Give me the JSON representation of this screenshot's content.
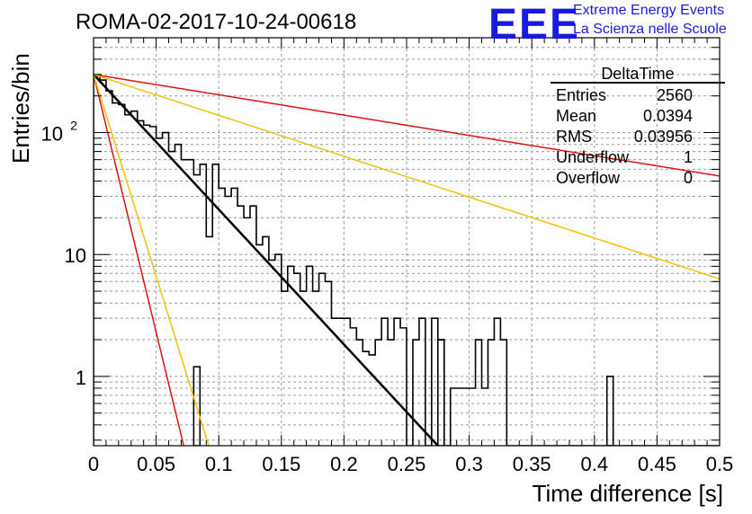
{
  "title": "ROMA-02-2017-10-24-00618",
  "logo": {
    "mark": "EEE",
    "line1": "Extreme Energy Events",
    "line2": "La Scienza nelle Scuole",
    "color": "#1a1adf"
  },
  "stats": {
    "title": "DeltaTime",
    "rows": [
      {
        "label": "Entries",
        "value": "2560"
      },
      {
        "label": "Mean",
        "value": "0.0394"
      },
      {
        "label": "RMS",
        "value": "0.03956"
      },
      {
        "label": "Underflow",
        "value": "1"
      },
      {
        "label": "Overflow",
        "value": "0"
      }
    ]
  },
  "chart_data": {
    "type": "line",
    "title": "ROMA-02-2017-10-24-00618",
    "xlabel": "Time difference [s]",
    "ylabel": "Entries/bin",
    "xlim": [
      0,
      0.5
    ],
    "ylim": [
      0.27,
      600
    ],
    "yscale": "log",
    "grid": true,
    "x_ticks": [
      "0",
      "0.05",
      "0.1",
      "0.15",
      "0.2",
      "0.25",
      "0.3",
      "0.35",
      "0.4",
      "0.45",
      "0.5"
    ],
    "x_tick_values": [
      0,
      0.05,
      0.1,
      0.15,
      0.2,
      0.25,
      0.3,
      0.35,
      0.4,
      0.45,
      0.5
    ],
    "y_ticks": [
      "1",
      "10",
      "10²"
    ],
    "y_tick_values": [
      1,
      10,
      100
    ],
    "histogram": {
      "bin_width": 0.005,
      "color": "#000000",
      "values": [
        290,
        270,
        220,
        175,
        170,
        140,
        150,
        125,
        115,
        112,
        90,
        100,
        70,
        80,
        60,
        60,
        45,
        55,
        14,
        55,
        35,
        30,
        35,
        25,
        20,
        25,
        12,
        14,
        9,
        10,
        5,
        8,
        7,
        5,
        8,
        5,
        7,
        6,
        3,
        3,
        3,
        2.5,
        2,
        1.6,
        1.5,
        2,
        3,
        2,
        3,
        2.5,
        0.2,
        2,
        3,
        0.2,
        3,
        2,
        0.2,
        0.8,
        0.8,
        0.8,
        0.8,
        2,
        0.8,
        2,
        3,
        2,
        0.2,
        0.2,
        0.2,
        0.2,
        0.2,
        0.2,
        0.2,
        0.2,
        0.2,
        0.2,
        0.2,
        0.2,
        0.2,
        0.2,
        0.2,
        0.2,
        0.2,
        0.2,
        0.2,
        0.2,
        0.2,
        0.2,
        0.2,
        0.2,
        0.2,
        0.2,
        0.2,
        0.2,
        0.2,
        0.2,
        0.2,
        0.2,
        0.2,
        0.2
      ],
      "extra": [
        {
          "x": 0.08,
          "w": 0.005,
          "y": 1.2
        },
        {
          "x": 0.275,
          "w": 0.005,
          "y": 2
        },
        {
          "x": 0.28,
          "w": 0.005,
          "y": 0.2
        },
        {
          "x": 0.41,
          "w": 0.005,
          "y": 1
        }
      ]
    },
    "series": [
      {
        "color": "#000000",
        "width": 2.5,
        "x": [
          0,
          0.275
        ],
        "y": [
          300,
          0.27
        ]
      },
      {
        "color": "#dd1111",
        "width": 1.5,
        "x": [
          0,
          0.5
        ],
        "y": [
          300,
          44
        ]
      },
      {
        "color": "#f2c200",
        "width": 1.5,
        "x": [
          0,
          0.5
        ],
        "y": [
          300,
          6.3
        ]
      },
      {
        "color": "#dd1111",
        "width": 1.5,
        "x": [
          0,
          0.072
        ],
        "y": [
          300,
          0.27
        ]
      },
      {
        "color": "#f2c200",
        "width": 1.5,
        "x": [
          0,
          0.092
        ],
        "y": [
          300,
          0.27
        ]
      }
    ]
  }
}
